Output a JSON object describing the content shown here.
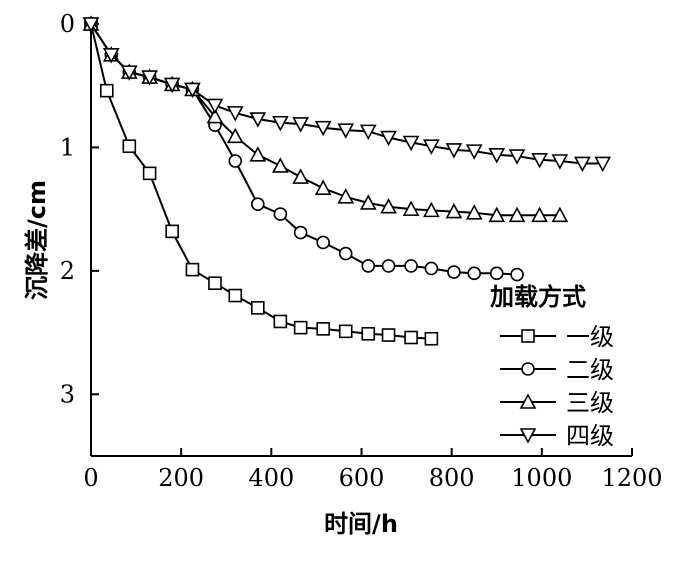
{
  "chart_data": {
    "type": "line",
    "title": "",
    "xlabel": "时间/h",
    "ylabel": "沉降差/cm",
    "xlim": [
      0,
      1200
    ],
    "ylim": [
      0,
      3.5
    ],
    "y_inverted": true,
    "x_ticks": [
      0,
      200,
      400,
      600,
      800,
      1000,
      1200
    ],
    "y_ticks": [
      0,
      1,
      2,
      3
    ],
    "grid": false,
    "legend": {
      "title": "加载方式",
      "position": "bottom-right"
    },
    "series": [
      {
        "name": "一级",
        "marker": "square",
        "points": [
          [
            0,
            0
          ],
          [
            35,
            0.54
          ],
          [
            85,
            0.99
          ],
          [
            130,
            1.21
          ],
          [
            180,
            1.68
          ],
          [
            225,
            1.99
          ],
          [
            275,
            2.1
          ],
          [
            320,
            2.2
          ],
          [
            370,
            2.3
          ],
          [
            420,
            2.41
          ],
          [
            465,
            2.46
          ],
          [
            515,
            2.47
          ],
          [
            565,
            2.49
          ],
          [
            615,
            2.51
          ],
          [
            660,
            2.52
          ],
          [
            710,
            2.54
          ],
          [
            755,
            2.55
          ]
        ]
      },
      {
        "name": "二级",
        "marker": "circle",
        "points": [
          [
            0,
            0
          ],
          [
            45,
            0.25
          ],
          [
            85,
            0.39
          ],
          [
            130,
            0.43
          ],
          [
            180,
            0.49
          ],
          [
            225,
            0.53
          ],
          [
            275,
            0.82
          ],
          [
            320,
            1.11
          ],
          [
            370,
            1.46
          ],
          [
            420,
            1.54
          ],
          [
            465,
            1.69
          ],
          [
            515,
            1.77
          ],
          [
            565,
            1.86
          ],
          [
            615,
            1.96
          ],
          [
            660,
            1.96
          ],
          [
            710,
            1.96
          ],
          [
            755,
            1.98
          ],
          [
            805,
            2.01
          ],
          [
            850,
            2.02
          ],
          [
            900,
            2.02
          ],
          [
            945,
            2.03
          ]
        ]
      },
      {
        "name": "三级",
        "marker": "triangle-up",
        "points": [
          [
            0,
            0
          ],
          [
            45,
            0.25
          ],
          [
            85,
            0.39
          ],
          [
            130,
            0.43
          ],
          [
            180,
            0.49
          ],
          [
            225,
            0.53
          ],
          [
            275,
            0.75
          ],
          [
            320,
            0.91
          ],
          [
            370,
            1.06
          ],
          [
            420,
            1.15
          ],
          [
            465,
            1.24
          ],
          [
            515,
            1.33
          ],
          [
            565,
            1.4
          ],
          [
            615,
            1.45
          ],
          [
            660,
            1.48
          ],
          [
            710,
            1.5
          ],
          [
            755,
            1.51
          ],
          [
            805,
            1.52
          ],
          [
            850,
            1.53
          ],
          [
            900,
            1.55
          ],
          [
            945,
            1.55
          ],
          [
            995,
            1.55
          ],
          [
            1040,
            1.55
          ]
        ]
      },
      {
        "name": "四级",
        "marker": "triangle-down",
        "points": [
          [
            0,
            0
          ],
          [
            45,
            0.25
          ],
          [
            85,
            0.39
          ],
          [
            130,
            0.43
          ],
          [
            180,
            0.49
          ],
          [
            225,
            0.53
          ],
          [
            275,
            0.66
          ],
          [
            320,
            0.72
          ],
          [
            370,
            0.77
          ],
          [
            420,
            0.8
          ],
          [
            465,
            0.81
          ],
          [
            515,
            0.84
          ],
          [
            565,
            0.86
          ],
          [
            615,
            0.87
          ],
          [
            660,
            0.92
          ],
          [
            710,
            0.96
          ],
          [
            755,
            0.99
          ],
          [
            805,
            1.02
          ],
          [
            850,
            1.03
          ],
          [
            900,
            1.06
          ],
          [
            945,
            1.07
          ],
          [
            995,
            1.1
          ],
          [
            1040,
            1.11
          ],
          [
            1090,
            1.13
          ],
          [
            1135,
            1.13
          ]
        ]
      }
    ]
  }
}
